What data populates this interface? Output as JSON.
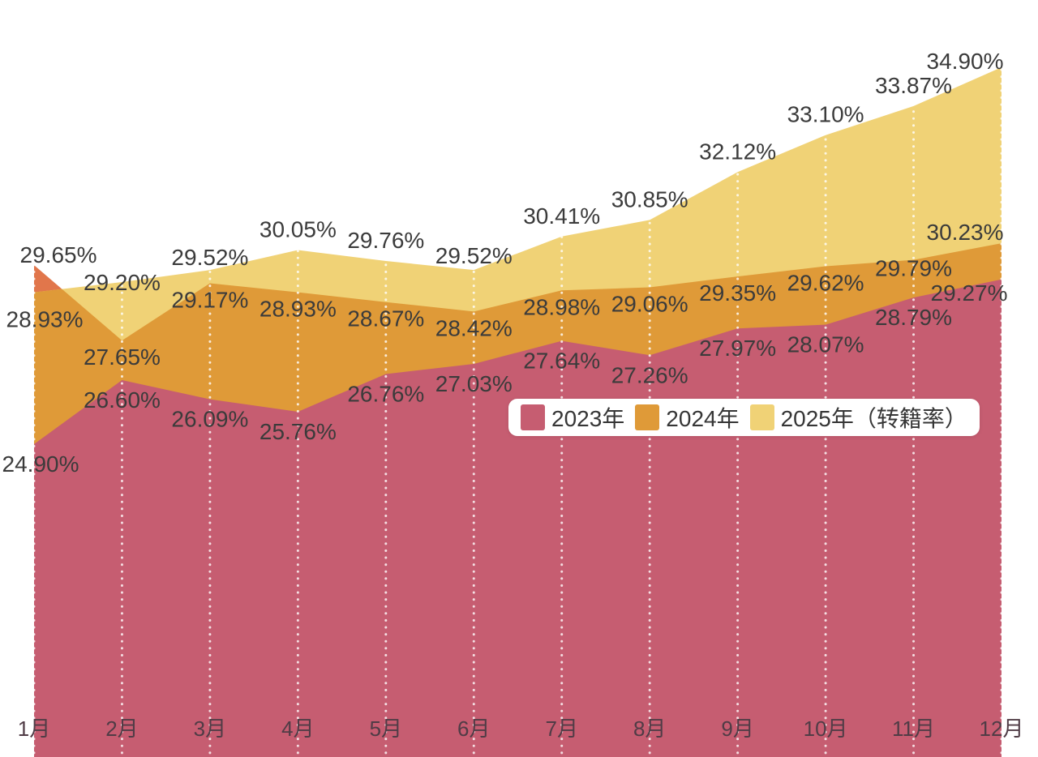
{
  "page": {
    "background": "#ffffff"
  },
  "chart_data": {
    "type": "area",
    "mode": "overlapping",
    "title": "",
    "xlabel": "",
    "ylabel": "",
    "x_categories": [
      "1月",
      "2月",
      "3月",
      "4月",
      "5月",
      "6月",
      "7月",
      "8月",
      "9月",
      "10月",
      "11月",
      "12月"
    ],
    "series": [
      {
        "name": "2023年",
        "color": "#c65d71",
        "values": [
          24.9,
          26.6,
          26.09,
          25.76,
          26.76,
          27.03,
          27.64,
          27.26,
          27.97,
          28.07,
          28.79,
          29.27
        ]
      },
      {
        "name": "2024年",
        "color": "#df9a38",
        "solo_color": "#e1764b",
        "values": [
          29.65,
          27.65,
          29.17,
          28.93,
          28.67,
          28.42,
          28.98,
          29.06,
          29.35,
          29.62,
          29.79,
          30.23
        ]
      },
      {
        "name": "2025年（转籍率）",
        "color": "#f0d276",
        "values": [
          28.93,
          29.2,
          29.52,
          30.05,
          29.76,
          29.52,
          30.41,
          30.85,
          32.12,
          33.1,
          33.87,
          34.9
        ]
      }
    ],
    "value_label_format": "0.00%",
    "value_label_color": "#3b3b3b",
    "axis_label_color": "#503c46",
    "gridlines": {
      "orientation": "vertical",
      "style": "dotted",
      "color": "#ffffff"
    },
    "legend_position": "inside-center-right",
    "y_range_visible": [
      16.6,
      36.7
    ]
  },
  "legend": {
    "items": [
      {
        "label": "2023年",
        "color": "#c65d71"
      },
      {
        "label": "2024年",
        "color": "#df9a38"
      },
      {
        "label": "2025年（转籍率）",
        "color": "#f0d276"
      }
    ]
  }
}
